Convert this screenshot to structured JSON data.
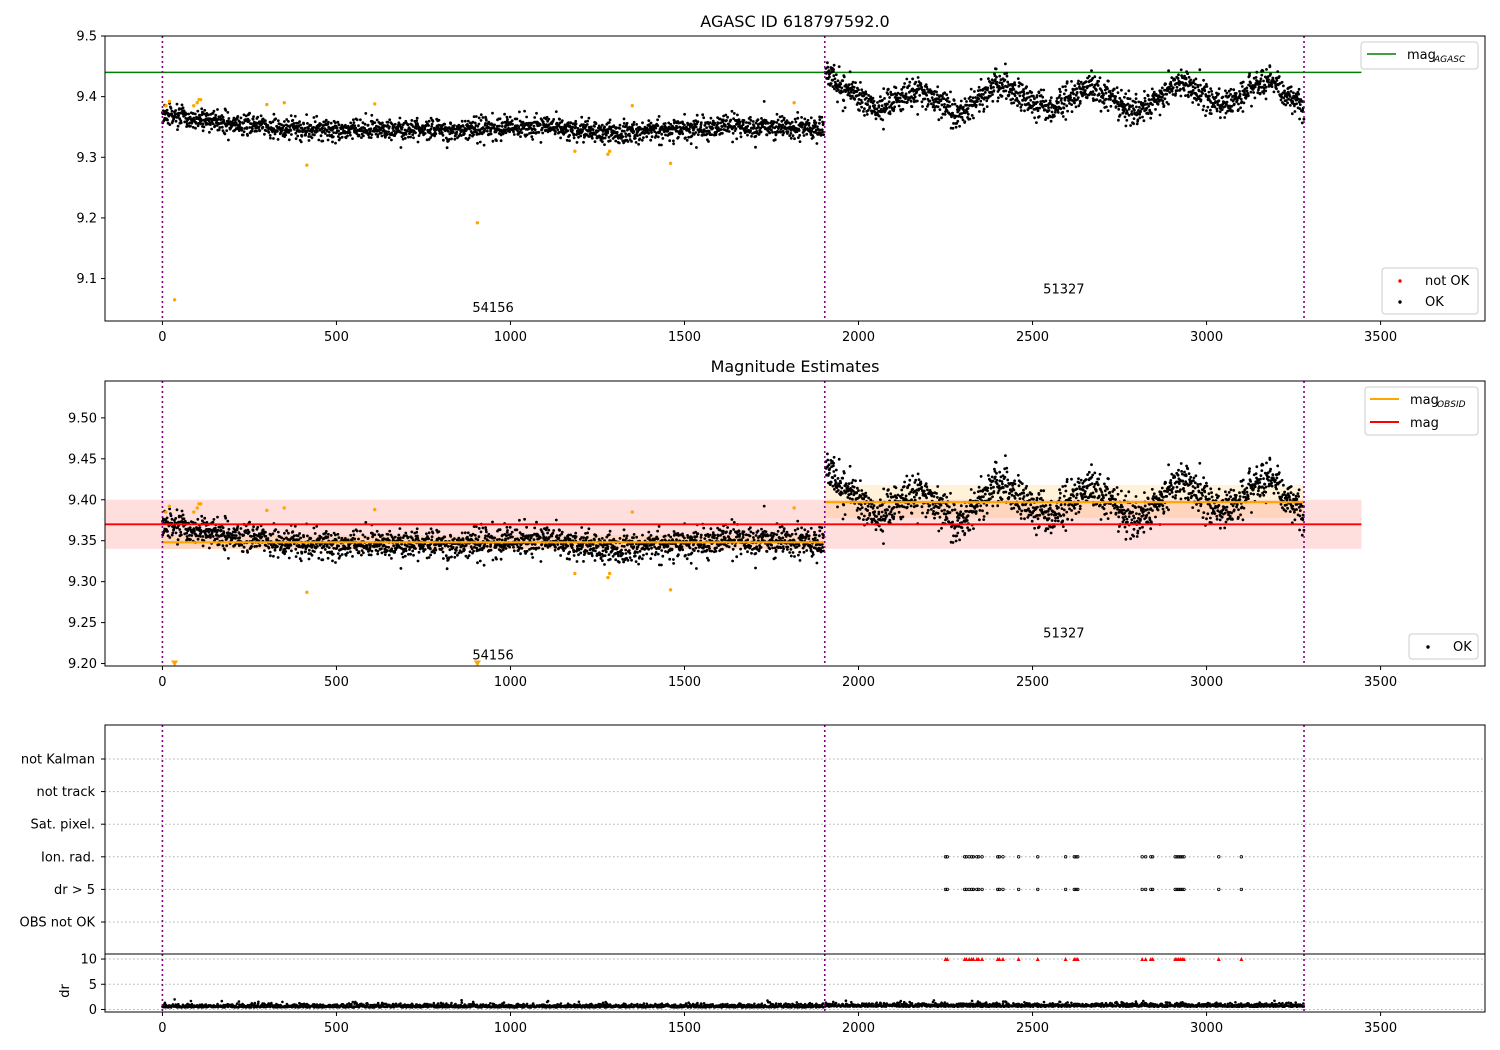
{
  "chart_data": [
    {
      "id": "top",
      "type": "scatter",
      "title": "AGASC ID 618797592.0",
      "xlim": [
        -165,
        3800
      ],
      "ylim": [
        9.03,
        9.5
      ],
      "x_ticks": [
        0,
        500,
        1000,
        1500,
        2000,
        2500,
        3000,
        3500
      ],
      "y_ticks": [
        9.1,
        9.2,
        9.3,
        9.4,
        9.5
      ],
      "vlines": [
        0,
        1903,
        3280
      ],
      "hline": {
        "y": 9.44,
        "x_range": [
          -165,
          3445
        ],
        "color": "#008000"
      },
      "legend_top": [
        {
          "label": "mag",
          "sub": "AGASC",
          "color": "#008000"
        }
      ],
      "legend_bottom": [
        {
          "label": "not OK",
          "color": "#ff0000"
        },
        {
          "label": "OK",
          "color": "#000000"
        }
      ],
      "annotations": [
        {
          "text": "54156",
          "x": 950,
          "y": 9.045
        },
        {
          "text": "51327",
          "x": 2590,
          "y": 9.075
        }
      ],
      "segments": [
        {
          "start": 0,
          "end": 1900,
          "baseline": [
            [
              0,
              9.37
            ],
            [
              150,
              9.36
            ],
            [
              400,
              9.345
            ],
            [
              700,
              9.345
            ],
            [
              1100,
              9.35
            ],
            [
              1300,
              9.34
            ],
            [
              1600,
              9.35
            ],
            [
              1900,
              9.35
            ]
          ],
          "noise": 0.009
        },
        {
          "start": 1905,
          "end": 3280,
          "baseline": [
            [
              1905,
              9.44
            ],
            [
              1950,
              9.42
            ],
            [
              2050,
              9.38
            ],
            [
              2180,
              9.41
            ],
            [
              2280,
              9.37
            ],
            [
              2400,
              9.42
            ],
            [
              2550,
              9.375
            ],
            [
              2660,
              9.42
            ],
            [
              2800,
              9.375
            ],
            [
              2920,
              9.425
            ],
            [
              3050,
              9.385
            ],
            [
              3180,
              9.43
            ],
            [
              3280,
              9.38
            ]
          ],
          "noise": 0.012
        }
      ],
      "outliers": [
        [
          35,
          9.065
        ],
        [
          415,
          9.287
        ],
        [
          905,
          9.192
        ],
        [
          1185,
          9.31
        ],
        [
          1280,
          9.305
        ],
        [
          1285,
          9.31
        ],
        [
          1350,
          9.385
        ],
        [
          1460,
          9.29
        ],
        [
          300,
          9.387
        ],
        [
          350,
          9.39
        ],
        [
          610,
          9.388
        ],
        [
          1815,
          9.39
        ],
        [
          90,
          9.385
        ],
        [
          100,
          9.39
        ],
        [
          105,
          9.395
        ],
        [
          110,
          9.395
        ],
        [
          20,
          9.392
        ],
        [
          10,
          9.385
        ]
      ],
      "outlier_color": "#ffa500"
    },
    {
      "id": "mid",
      "type": "scatter",
      "title": "Magnitude Estimates",
      "xlim": [
        -165,
        3800
      ],
      "ylim": [
        9.197,
        9.545
      ],
      "x_ticks": [
        0,
        500,
        1000,
        1500,
        2000,
        2500,
        3000,
        3500
      ],
      "y_ticks": [
        9.2,
        9.25,
        9.3,
        9.35,
        9.4,
        9.45,
        9.5
      ],
      "vlines": [
        0,
        1903,
        3280
      ],
      "mag_line": {
        "y": 9.37,
        "band": [
          9.34,
          9.4
        ],
        "x_range": [
          -165,
          3445
        ],
        "color": "#ff0000"
      },
      "obsid_lines": [
        {
          "x_range": [
            0,
            1903
          ],
          "y": 9.348,
          "band": [
            9.34,
            9.357
          ]
        },
        {
          "x_range": [
            1903,
            3280
          ],
          "y": 9.397,
          "band": [
            9.378,
            9.418
          ]
        }
      ],
      "legend_top": [
        {
          "label": "mag",
          "sub": "OBSID",
          "color": "#ffa500"
        },
        {
          "label": "mag",
          "sub": "",
          "color": "#ff0000"
        }
      ],
      "legend_bottom": [
        {
          "label": "OK",
          "color": "#000000"
        }
      ],
      "annotations": [
        {
          "text": "54156",
          "x": 950,
          "y": 9.205
        },
        {
          "text": "51327",
          "x": 2590,
          "y": 9.232
        }
      ],
      "triangles": [
        [
          35,
          9.2
        ],
        [
          905,
          9.2
        ]
      ]
    },
    {
      "id": "flags",
      "type": "scatter",
      "xlim": [
        -165,
        3800
      ],
      "x_ticks": [
        0,
        500,
        1000,
        1500,
        2000,
        2500,
        3000,
        3500
      ],
      "vlines": [
        0,
        1903,
        3280
      ],
      "flag_labels": [
        "not Kalman",
        "not track",
        "Sat. pixel.",
        "Ion. rad.",
        "dr > 5",
        "OBS not OK"
      ],
      "flagged_x": [
        2250,
        2255,
        2305,
        2310,
        2318,
        2325,
        2330,
        2340,
        2345,
        2355,
        2400,
        2405,
        2415,
        2460,
        2515,
        2595,
        2620,
        2625,
        2630,
        2815,
        2825,
        2840,
        2845,
        2910,
        2915,
        2920,
        2925,
        2930,
        2935,
        3035,
        3100
      ],
      "dr_label": "dr",
      "dr_ylim": [
        -0.5,
        11
      ],
      "dr_ticks": [
        0,
        5,
        10
      ],
      "dr_segments": [
        {
          "start": 0,
          "end": 1900,
          "level": 0.4
        },
        {
          "start": 1905,
          "end": 3280,
          "level": 0.55
        }
      ],
      "dr_marker_color": "#ff0000"
    }
  ]
}
